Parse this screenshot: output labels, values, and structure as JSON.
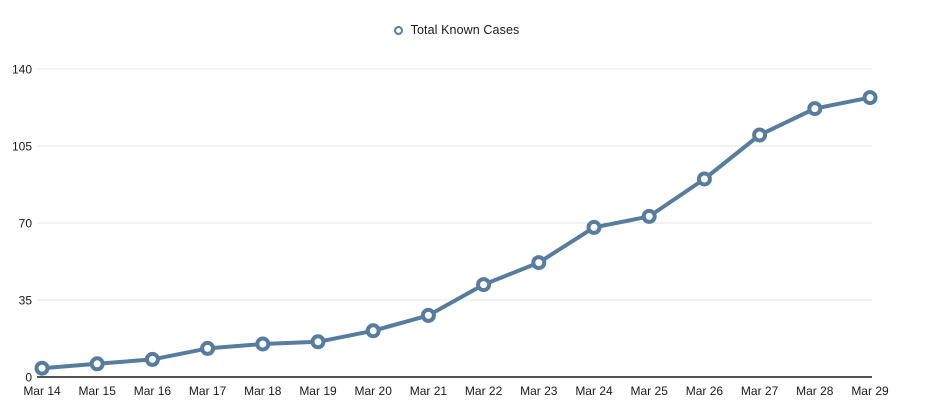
{
  "chart_data": {
    "type": "line",
    "title": "",
    "legend": {
      "label": "Total Known Cases",
      "position": "top-center"
    },
    "categories": [
      "Mar 14",
      "Mar 15",
      "Mar 16",
      "Mar 17",
      "Mar 18",
      "Mar 19",
      "Mar 20",
      "Mar 21",
      "Mar 22",
      "Mar 23",
      "Mar 24",
      "Mar 25",
      "Mar 26",
      "Mar 27",
      "Mar 28",
      "Mar 29"
    ],
    "series": [
      {
        "name": "Total Known Cases",
        "values": [
          4,
          6,
          8,
          13,
          15,
          16,
          21,
          28,
          42,
          52,
          68,
          73,
          90,
          110,
          122,
          127
        ]
      }
    ],
    "xlabel": "",
    "ylabel": "",
    "ylim": [
      0,
      140
    ],
    "yticks": [
      0,
      35,
      70,
      105,
      140
    ],
    "grid": true,
    "marker": "open-circle",
    "colors": {
      "line": "#567d9e",
      "marker_fill": "#ffffff",
      "grid": "#e4e4e4",
      "axis": "#1a1a1a",
      "text": "#1a1a1a",
      "background": "#ffffff"
    }
  }
}
